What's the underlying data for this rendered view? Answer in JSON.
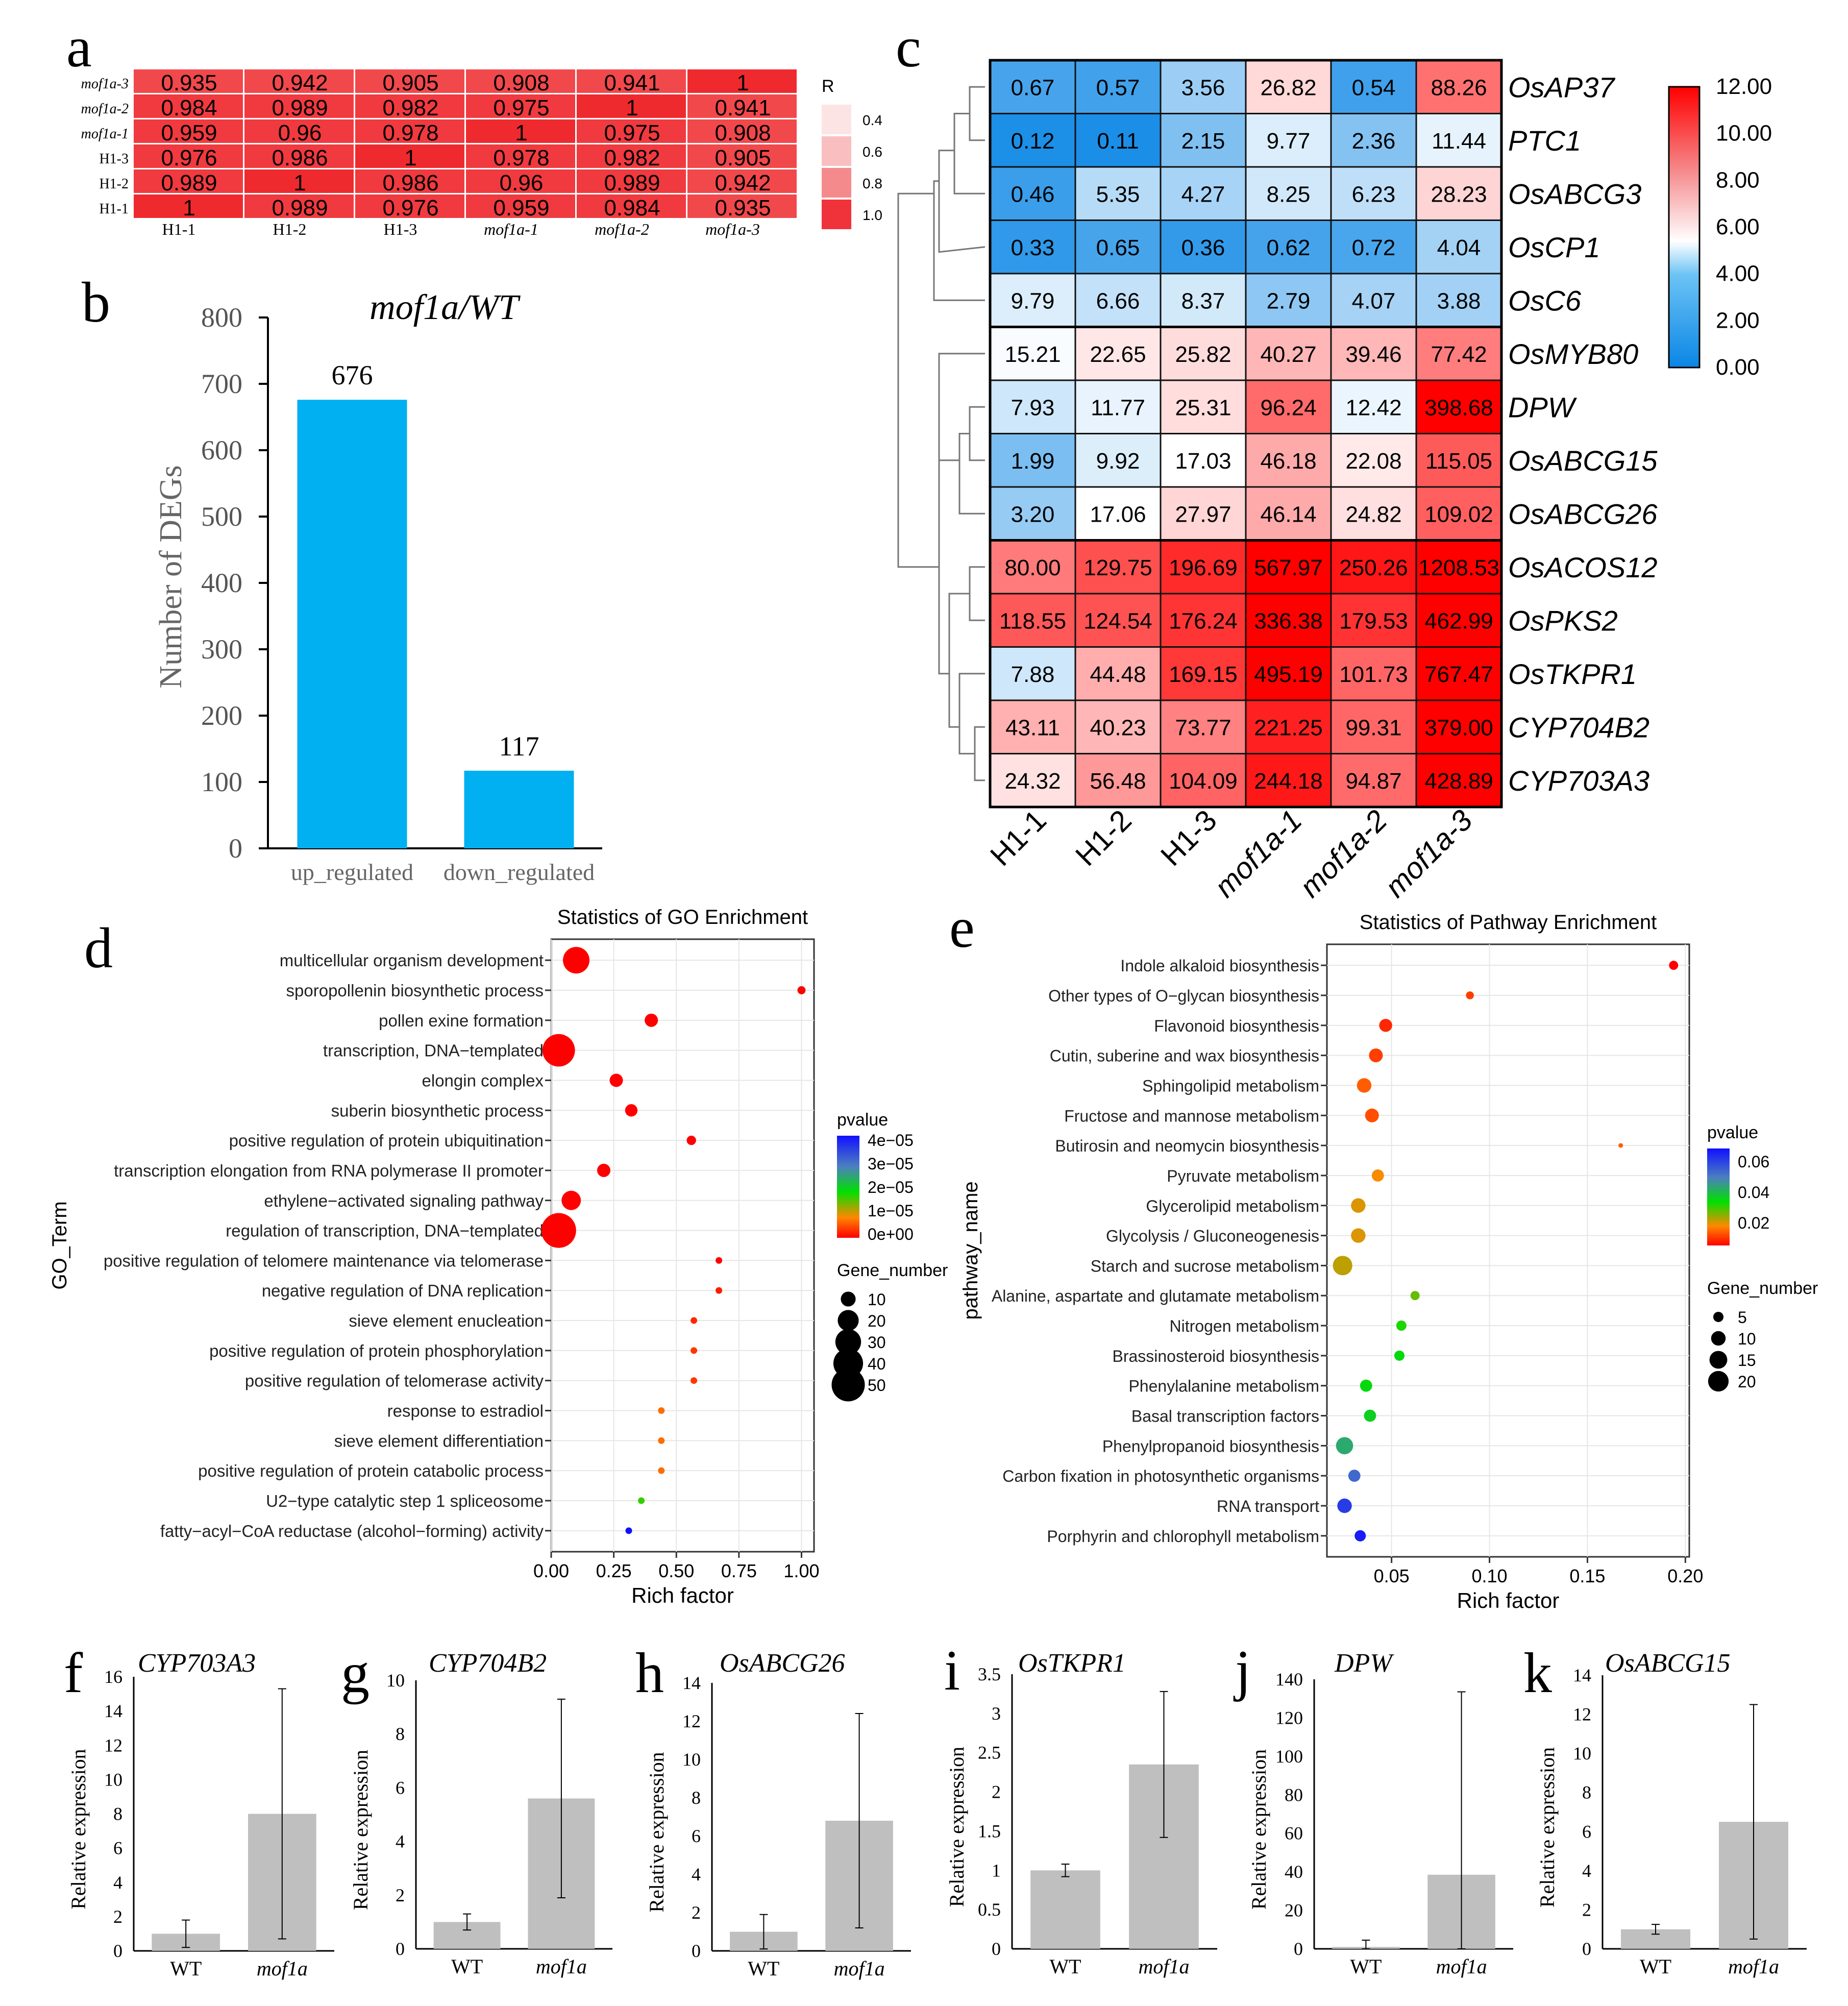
{
  "panel_letters": {
    "a": "a",
    "b": "b",
    "c": "c",
    "d": "d",
    "e": "e",
    "f": "f",
    "g": "g",
    "h": "h",
    "i": "i",
    "j": "j",
    "k": "k"
  },
  "colors": {
    "blue_bar": "#00b0f0",
    "gray_bar": "#bfbfbf",
    "corr_red": "#f0333a",
    "heat_low": "#0a86e5",
    "heat_mid": "#ffffff",
    "heat_high": "#ff0000"
  },
  "chart_data": [
    {
      "id": "a",
      "type": "heatmap",
      "rows": [
        "mof1a-3",
        "mof1a-2",
        "mof1a-1",
        "H1-3",
        "H1-2",
        "H1-1"
      ],
      "columns": [
        "H1-1",
        "H1-2",
        "H1-3",
        "mof1a-1",
        "mof1a-2",
        "mof1a-3"
      ],
      "values": [
        [
          "0.935",
          "0.942",
          "0.905",
          "0.908",
          "0.941",
          "1"
        ],
        [
          "0.984",
          "0.989",
          "0.982",
          "0.975",
          "1",
          "0.941"
        ],
        [
          "0.959",
          "0.96",
          "0.978",
          "1",
          "0.975",
          "0.908"
        ],
        [
          "0.976",
          "0.986",
          "1",
          "0.978",
          "0.982",
          "0.905"
        ],
        [
          "0.989",
          "1",
          "0.986",
          "0.96",
          "0.989",
          "0.942"
        ],
        [
          "1",
          "0.989",
          "0.976",
          "0.959",
          "0.984",
          "0.935"
        ]
      ],
      "legend_title": "R",
      "legend_ticks": [
        "0.4",
        "0.6",
        "0.8",
        "1.0"
      ],
      "legend_colors": [
        "#fde4e4",
        "#f9bfc0",
        "#f58a8c",
        "#f0333a"
      ]
    },
    {
      "id": "b",
      "type": "bar",
      "title": "mof1a/WT",
      "categories": [
        "up_regulated",
        "down_regulated"
      ],
      "values": [
        676,
        117
      ],
      "value_labels": [
        "676",
        "117"
      ],
      "ylabel": "Number of DEGs",
      "ylim": [
        0,
        800
      ],
      "yticks": [
        "0",
        "100",
        "200",
        "300",
        "400",
        "500",
        "600",
        "700",
        "800"
      ]
    },
    {
      "id": "c",
      "type": "heatmap",
      "columns": [
        "H1-1",
        "H1-2",
        "H1-3",
        "mof1a-1",
        "mof1a-2",
        "mof1a-3"
      ],
      "genes": [
        "OsAP37",
        "PTC1",
        "OsABCG3",
        "OsCP1",
        "OsC6",
        "OsMYB80",
        "DPW",
        "OsABCG15",
        "OsABCG26",
        "OsACOS12",
        "OsPKS2",
        "OsTKPR1",
        "CYP704B2",
        "CYP703A3"
      ],
      "values": [
        [
          "0.67",
          "0.57",
          "3.56",
          "26.82",
          "0.54",
          "88.26"
        ],
        [
          "0.12",
          "0.11",
          "2.15",
          "9.77",
          "2.36",
          "11.44"
        ],
        [
          "0.46",
          "5.35",
          "4.27",
          "8.25",
          "6.23",
          "28.23"
        ],
        [
          "0.33",
          "0.65",
          "0.36",
          "0.62",
          "0.72",
          "4.04"
        ],
        [
          "9.79",
          "6.66",
          "8.37",
          "2.79",
          "4.07",
          "3.88"
        ],
        [
          "15.21",
          "22.65",
          "25.82",
          "40.27",
          "39.46",
          "77.42"
        ],
        [
          "7.93",
          "11.77",
          "25.31",
          "96.24",
          "12.42",
          "398.68"
        ],
        [
          "1.99",
          "9.92",
          "17.03",
          "46.18",
          "22.08",
          "115.05"
        ],
        [
          "3.20",
          "17.06",
          "27.97",
          "46.14",
          "24.82",
          "109.02"
        ],
        [
          "80.00",
          "129.75",
          "196.69",
          "567.97",
          "250.26",
          "1208.53"
        ],
        [
          "118.55",
          "124.54",
          "176.24",
          "336.38",
          "179.53",
          "462.99"
        ],
        [
          "7.88",
          "44.48",
          "169.15",
          "495.19",
          "101.73",
          "767.47"
        ],
        [
          "43.11",
          "40.23",
          "73.77",
          "221.25",
          "99.31",
          "379.00"
        ],
        [
          "24.32",
          "56.48",
          "104.09",
          "244.18",
          "94.87",
          "428.89"
        ]
      ],
      "colorbar_ticks": [
        "12.00",
        "10.00",
        "8.00",
        "6.00",
        "4.00",
        "2.00",
        "0.00"
      ],
      "colorbar_range": [
        0,
        12
      ]
    },
    {
      "id": "d",
      "type": "scatter",
      "title": "Statistics of GO Enrichment",
      "xlabel": "Rich factor",
      "ylabel": "GO_Term",
      "xlim": [
        0,
        1.05
      ],
      "xticks": [
        0,
        0.25,
        0.5,
        0.75,
        1.0
      ],
      "xtick_labels": [
        "0.00",
        "0.25",
        "0.50",
        "0.75",
        "1.00"
      ],
      "terms": [
        {
          "name": "multicellular organism development",
          "x": 0.1,
          "size": 32,
          "p": 0
        },
        {
          "name": "sporopollenin biosynthetic process",
          "x": 1.0,
          "size": 3,
          "p": 0
        },
        {
          "name": "pollen exine formation",
          "x": 0.4,
          "size": 8,
          "p": 0
        },
        {
          "name": "transcription, DNA−templated",
          "x": 0.03,
          "size": 48,
          "p": 0
        },
        {
          "name": "elongin complex",
          "x": 0.26,
          "size": 8,
          "p": 0
        },
        {
          "name": "suberin biosynthetic process",
          "x": 0.32,
          "size": 7,
          "p": 0
        },
        {
          "name": "positive regulation of protein ubiquitination",
          "x": 0.56,
          "size": 4,
          "p": 0
        },
        {
          "name": "transcription elongation from RNA polymerase II promoter",
          "x": 0.21,
          "size": 8,
          "p": 0
        },
        {
          "name": "ethylene−activated signaling pathway",
          "x": 0.08,
          "size": 17,
          "p": 0
        },
        {
          "name": "regulation of transcription, DNA−templated",
          "x": 0.03,
          "size": 55,
          "p": 0
        },
        {
          "name": "positive regulation of telomere maintenance via telomerase",
          "x": 0.67,
          "size": 2,
          "p": 0
        },
        {
          "name": "negative regulation of DNA replication",
          "x": 0.67,
          "size": 2,
          "p": 2e-06
        },
        {
          "name": "sieve element enucleation",
          "x": 0.57,
          "size": 2,
          "p": 3e-06
        },
        {
          "name": "positive regulation of protein phosphorylation",
          "x": 0.57,
          "size": 2,
          "p": 4e-06
        },
        {
          "name": "positive regulation of telomerase activity",
          "x": 0.57,
          "size": 2,
          "p": 4e-06
        },
        {
          "name": "response to estradiol",
          "x": 0.44,
          "size": 2,
          "p": 8e-06
        },
        {
          "name": "sieve element differentiation",
          "x": 0.44,
          "size": 2,
          "p": 8e-06
        },
        {
          "name": "positive regulation of protein catabolic process",
          "x": 0.44,
          "size": 2,
          "p": 8e-06
        },
        {
          "name": "U2−type catalytic step 1 spliceosome",
          "x": 0.36,
          "size": 2,
          "p": 1.8e-05
        },
        {
          "name": "fatty−acyl−CoA reductase (alcohol−forming) activity",
          "x": 0.31,
          "size": 2,
          "p": 4.2e-05
        }
      ],
      "pvalue_legend": {
        "title": "pvalue",
        "labels": [
          "4e−05",
          "3e−05",
          "2e−05",
          "1e−05",
          "0e+00"
        ],
        "range": [
          0,
          4e-05
        ]
      },
      "size_legend": {
        "title": "Gene_number",
        "labels": [
          "10",
          "20",
          "30",
          "40",
          "50"
        ],
        "values": [
          10,
          20,
          30,
          40,
          50
        ]
      }
    },
    {
      "id": "e",
      "type": "scatter",
      "title": "Statistics of Pathway Enrichment",
      "xlabel": "Rich factor",
      "ylabel": "pathway_name",
      "xlim": [
        0.017,
        0.202
      ],
      "xticks": [
        0.05,
        0.1,
        0.15,
        0.2
      ],
      "xtick_labels": [
        "0.05",
        "0.10",
        "0.15",
        "0.20"
      ],
      "terms": [
        {
          "name": "Indole alkaloid biosynthesis",
          "x": 0.194,
          "size": 4,
          "p": 0.0
        },
        {
          "name": "Other types of O−glycan biosynthesis",
          "x": 0.09,
          "size": 3,
          "p": 0.008
        },
        {
          "name": "Flavonoid biosynthesis",
          "x": 0.047,
          "size": 8,
          "p": 0.005
        },
        {
          "name": "Cutin, suberine and wax biosynthesis",
          "x": 0.042,
          "size": 9,
          "p": 0.008
        },
        {
          "name": "Sphingolipid metabolism",
          "x": 0.036,
          "size": 10,
          "p": 0.012
        },
        {
          "name": "Fructose and mannose metabolism",
          "x": 0.04,
          "size": 9,
          "p": 0.01
        },
        {
          "name": "Butirosin and neomycin biosynthesis",
          "x": 0.167,
          "size": 1,
          "p": 0.012
        },
        {
          "name": "Pyruvate metabolism",
          "x": 0.043,
          "size": 7,
          "p": 0.018
        },
        {
          "name": "Glycerolipid metabolism",
          "x": 0.033,
          "size": 10,
          "p": 0.02
        },
        {
          "name": "Glycolysis / Gluconeogenesis",
          "x": 0.033,
          "size": 10,
          "p": 0.02
        },
        {
          "name": "Starch and sucrose metabolism",
          "x": 0.025,
          "size": 18,
          "p": 0.022
        },
        {
          "name": "Alanine, aspartate and glutamate metabolism",
          "x": 0.062,
          "size": 4,
          "p": 0.028
        },
        {
          "name": "Nitrogen metabolism",
          "x": 0.055,
          "size": 5,
          "p": 0.033
        },
        {
          "name": "Brassinosteroid biosynthesis",
          "x": 0.054,
          "size": 5,
          "p": 0.036
        },
        {
          "name": "Phenylalanine metabolism",
          "x": 0.037,
          "size": 7,
          "p": 0.036
        },
        {
          "name": "Basal transcription factors",
          "x": 0.039,
          "size": 7,
          "p": 0.038
        },
        {
          "name": "Phenylpropanoid biosynthesis",
          "x": 0.026,
          "size": 14,
          "p": 0.045
        },
        {
          "name": "Carbon fixation in photosynthetic organisms",
          "x": 0.031,
          "size": 7,
          "p": 0.056
        },
        {
          "name": "RNA transport",
          "x": 0.026,
          "size": 10,
          "p": 0.063
        },
        {
          "name": "Porphyrin and chlorophyll metabolism",
          "x": 0.034,
          "size": 6,
          "p": 0.068
        }
      ],
      "pvalue_legend": {
        "title": "pvalue",
        "labels": [
          "0.06",
          "0.04",
          "0.02"
        ],
        "values": [
          0.06,
          0.04,
          0.02
        ],
        "range": [
          0,
          0.07
        ]
      },
      "size_legend": {
        "title": "Gene_number",
        "labels": [
          "5",
          "10",
          "15",
          "20"
        ],
        "values": [
          5,
          10,
          15,
          20
        ]
      }
    },
    {
      "id": "f",
      "type": "bar",
      "title": "CYP703A3",
      "categories": [
        "WT",
        "mof1a"
      ],
      "values": [
        1.0,
        8.0
      ],
      "errors": [
        0.8,
        7.3
      ],
      "ylabel": "Relative expression",
      "ylim": [
        0,
        16
      ],
      "yticks": [
        "0",
        "2",
        "4",
        "6",
        "8",
        "10",
        "12",
        "14",
        "16"
      ]
    },
    {
      "id": "g",
      "type": "bar",
      "title": "CYP704B2",
      "categories": [
        "WT",
        "mof1a"
      ],
      "values": [
        1.0,
        5.6
      ],
      "errors": [
        0.3,
        3.7
      ],
      "ylabel": "Relative expression",
      "ylim": [
        0,
        10
      ],
      "yticks": [
        "0",
        "2",
        "4",
        "6",
        "8",
        "10"
      ]
    },
    {
      "id": "h",
      "type": "bar",
      "title": "OsABCG26",
      "categories": [
        "WT",
        "mof1a"
      ],
      "values": [
        1.0,
        6.8
      ],
      "errors": [
        0.9,
        5.6
      ],
      "ylabel": "Relative expression",
      "ylim": [
        0,
        14
      ],
      "yticks": [
        "0",
        "2",
        "4",
        "6",
        "8",
        "10",
        "12",
        "14"
      ]
    },
    {
      "id": "i",
      "type": "bar",
      "title": "OsTKPR1",
      "categories": [
        "WT",
        "mof1a"
      ],
      "values": [
        1.0,
        2.35
      ],
      "errors": [
        0.08,
        0.93
      ],
      "ylabel": "Relative expression",
      "ylim": [
        0,
        3.5
      ],
      "yticks": [
        "0",
        "0.5",
        "1",
        "1.5",
        "2",
        "2.5",
        "3",
        "3.5"
      ]
    },
    {
      "id": "j",
      "type": "bar",
      "title": "DPW",
      "categories": [
        "WT",
        "mof1a"
      ],
      "values": [
        1.0,
        38.5
      ],
      "errors": [
        3.5,
        95.0
      ],
      "ylabel": "Relative expression",
      "ylim": [
        0,
        140
      ],
      "yticks": [
        "0",
        "20",
        "40",
        "60",
        "80",
        "100",
        "120",
        "140"
      ]
    },
    {
      "id": "k",
      "type": "bar",
      "title": "OsABCG15",
      "categories": [
        "WT",
        "mof1a"
      ],
      "values": [
        1.0,
        6.5
      ],
      "errors": [
        0.25,
        6.0
      ],
      "ylabel": "Relative expression",
      "ylim": [
        0,
        14
      ],
      "yticks": [
        "0",
        "2",
        "4",
        "6",
        "8",
        "10",
        "12",
        "14"
      ]
    }
  ]
}
